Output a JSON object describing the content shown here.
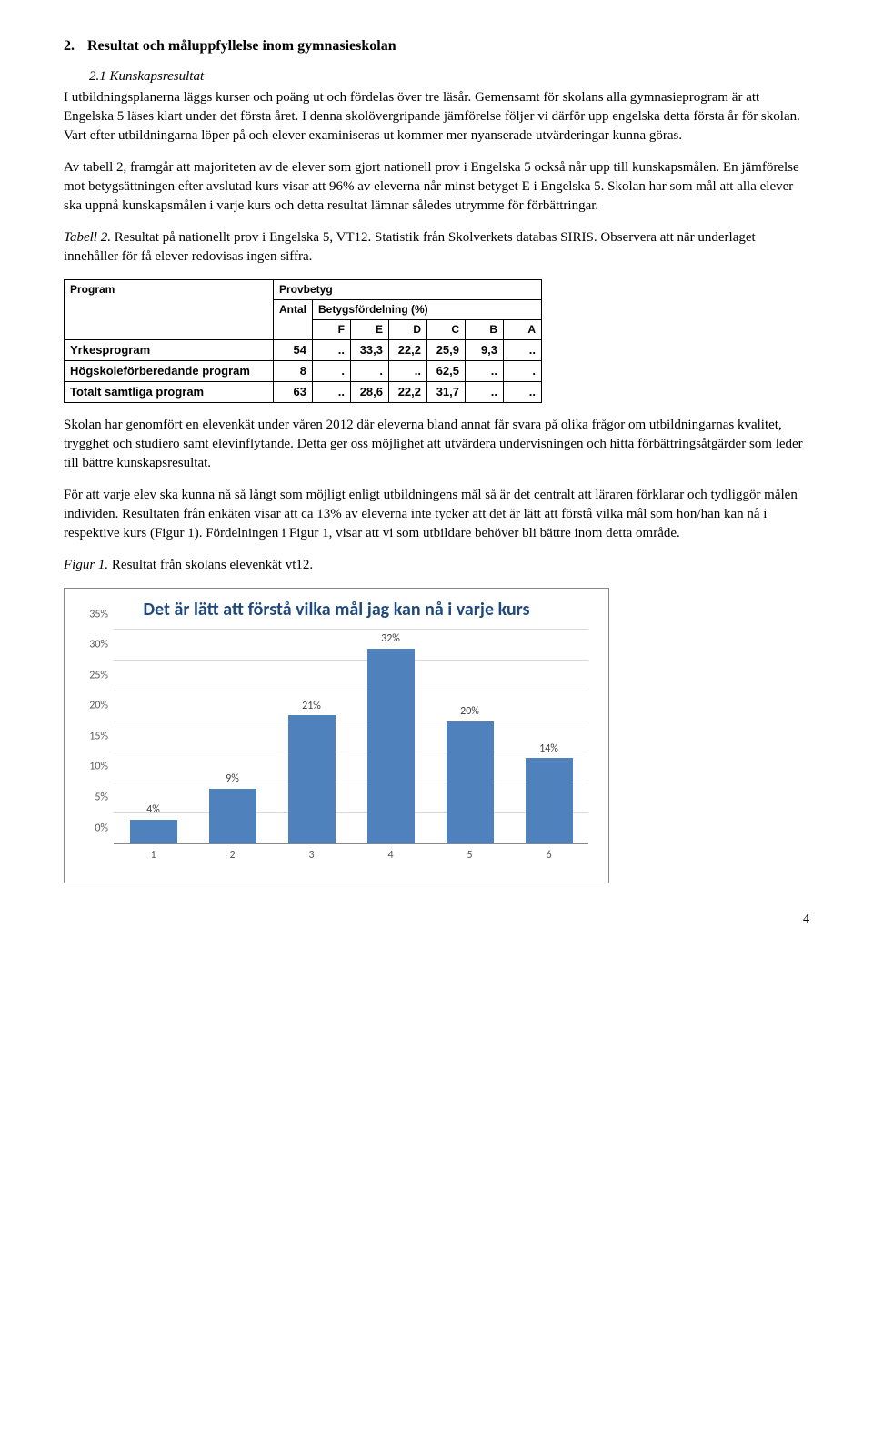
{
  "heading": {
    "num": "2.",
    "text": "Resultat och måluppfyllelse inom gymnasieskolan"
  },
  "subheading": "2.1 Kunskapsresultat",
  "para1": "I utbildningsplanerna läggs kurser och poäng ut och fördelas över tre läsår. Gemensamt för skolans alla gymnasieprogram är att Engelska 5 läses klart under det första året. I denna skolövergripande jämförelse följer vi därför upp engelska detta första år för skolan. Vart efter utbildningarna löper på och elever examiniseras ut kommer mer nyanserade utvärderingar kunna göras.",
  "para2": "Av tabell 2, framgår att majoriteten av de elever som gjort nationell prov i Engelska 5 också når upp till kunskapsmålen. En jämförelse mot betygsättningen efter avslutad kurs visar att 96% av eleverna når minst betyget E i Engelska 5. Skolan har som mål att alla elever ska uppnå kunskapsmålen i varje kurs och detta resultat lämnar således utrymme för förbättringar.",
  "tableCaption": {
    "lead": "Tabell 2.",
    "rest": " Resultat på nationellt prov i Engelska 5, VT12. Statistik från Skolverkets databas SIRIS. Observera att när underlaget innehåller för få elever redovisas ingen siffra."
  },
  "table": {
    "head": {
      "program": "Program",
      "provbetyg": "Provbetyg",
      "antal": "Antal",
      "fordelning": "Betygsfördelning (%)",
      "grades": [
        "F",
        "E",
        "D",
        "C",
        "B",
        "A"
      ]
    },
    "rows": [
      {
        "prog": "Yrkesprogram",
        "antal": "54",
        "cells": [
          "..",
          "33,3",
          "22,2",
          "25,9",
          "9,3",
          ".."
        ]
      },
      {
        "prog": "Högskoleförberedande program",
        "antal": "8",
        "cells": [
          ".",
          ".",
          "..",
          "62,5",
          "..",
          "."
        ]
      },
      {
        "prog": "Totalt samtliga program",
        "antal": "63",
        "cells": [
          "..",
          "28,6",
          "22,2",
          "31,7",
          "..",
          ".."
        ]
      }
    ]
  },
  "para3": "Skolan har genomfört en elevenkät under våren 2012 där eleverna bland annat får svara på olika frågor om utbildningarnas kvalitet, trygghet och studiero samt elevinflytande. Detta ger oss möjlighet att utvärdera undervisningen och hitta förbättringsåtgärder som leder till bättre kunskapsresultat.",
  "para4": "För att varje elev ska kunna nå så långt som möjligt enligt utbildningens mål så är det centralt att läraren förklarar och tydliggör målen individen. Resultaten från enkäten visar att ca 13% av eleverna inte tycker att det är lätt att förstå vilka mål som hon/han kan nå i respektive kurs (Figur 1). Fördelningen i Figur 1, visar att vi som utbildare behöver bli bättre inom detta område.",
  "figCaption": {
    "lead": "Figur 1.",
    "rest": " Resultat från skolans elevenkät vt12."
  },
  "chart": {
    "title": "Det är lätt att förstå vilka mål jag kan nå i varje kurs",
    "barColor": "#4f81bd",
    "titleColor": "#1f497d",
    "yMax": 35,
    "yStep": 5,
    "yLabels": [
      "0%",
      "5%",
      "10%",
      "15%",
      "20%",
      "25%",
      "30%",
      "35%"
    ],
    "categories": [
      "1",
      "2",
      "3",
      "4",
      "5",
      "6"
    ],
    "values": [
      4,
      9,
      21,
      32,
      20,
      14
    ],
    "valueLabels": [
      "4%",
      "9%",
      "21%",
      "32%",
      "20%",
      "14%"
    ]
  },
  "pageNum": "4"
}
